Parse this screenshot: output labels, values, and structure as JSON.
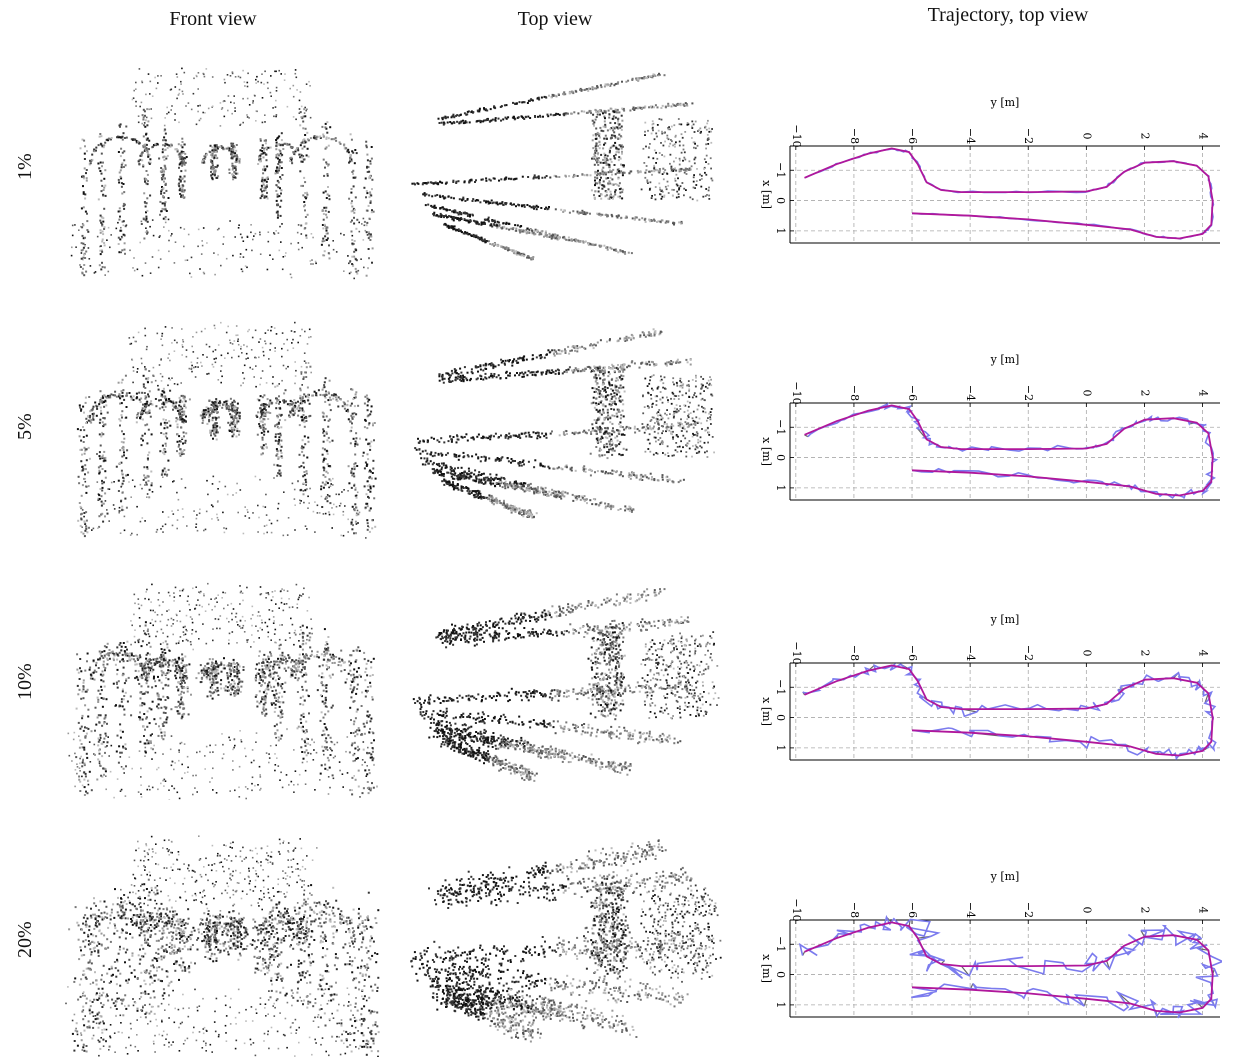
{
  "headers": {
    "front": "Front view",
    "top": "Top view",
    "traj": "Trajectory, top view"
  },
  "rows": [
    {
      "label": "1%",
      "noise": 0.01
    },
    {
      "label": "5%",
      "noise": 0.05
    },
    {
      "label": "10%",
      "noise": 0.1
    },
    {
      "label": "20%",
      "noise": 0.2
    }
  ],
  "chart_data": [
    {
      "type": "line",
      "xlabel": "y [m]",
      "ylabel": "x [m]",
      "x_ticks": [
        -10,
        -8,
        -6,
        -4,
        -2,
        0,
        2,
        4
      ],
      "y_ticks": [
        -1,
        0,
        1
      ],
      "xlim": [
        -10.2,
        4.6
      ],
      "ylim": [
        -1.8,
        1.4
      ],
      "grid": true,
      "series": [
        {
          "color": "#b0179b"
        },
        {
          "color": "#7b7bee"
        }
      ]
    },
    {
      "type": "line",
      "xlabel": "y [m]",
      "ylabel": "x [m]",
      "x_ticks": [
        -10,
        -8,
        -6,
        -4,
        -2,
        0,
        2,
        4
      ],
      "y_ticks": [
        -1,
        0,
        1
      ],
      "xlim": [
        -10.2,
        4.6
      ],
      "ylim": [
        -1.8,
        1.4
      ],
      "grid": true,
      "series": [
        {
          "color": "#b0179b"
        },
        {
          "color": "#7b7bee"
        }
      ]
    },
    {
      "type": "line",
      "xlabel": "y [m]",
      "ylabel": "x [m]",
      "x_ticks": [
        -10,
        -8,
        -6,
        -4,
        -2,
        0,
        2,
        4
      ],
      "y_ticks": [
        -1,
        0,
        1
      ],
      "xlim": [
        -10.2,
        4.6
      ],
      "ylim": [
        -1.8,
        1.4
      ],
      "grid": true,
      "series": [
        {
          "color": "#b0179b"
        },
        {
          "color": "#7b7bee"
        }
      ]
    },
    {
      "type": "line",
      "xlabel": "y [m]",
      "ylabel": "x [m]",
      "x_ticks": [
        -10,
        -8,
        -6,
        -4,
        -2,
        0,
        2,
        4
      ],
      "y_ticks": [
        -1,
        0,
        1
      ],
      "xlim": [
        -10.2,
        4.6
      ],
      "ylim": [
        -1.8,
        1.4
      ],
      "grid": true,
      "series": [
        {
          "color": "#b0179b"
        },
        {
          "color": "#7b7bee"
        }
      ]
    }
  ]
}
